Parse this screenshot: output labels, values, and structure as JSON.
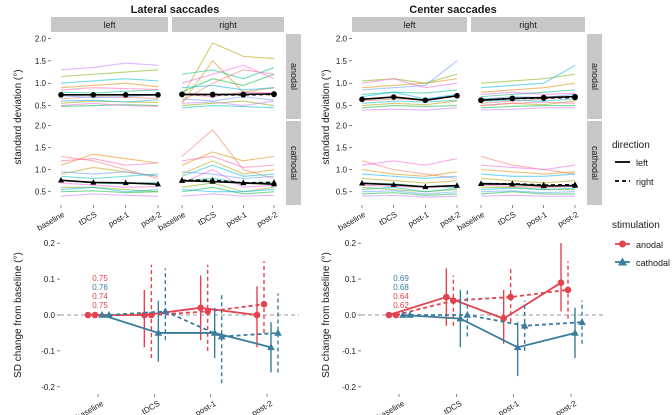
{
  "figure": {
    "panel_titles": [
      "Lateral saccades",
      "Center saccades"
    ],
    "facet_columns": [
      "left",
      "right"
    ],
    "facet_rows": [
      "anodal",
      "cathodal"
    ],
    "top_ylabel": "standard deviation (°)",
    "bottom_ylabel": "SD change from baseline (°)",
    "legend_direction": {
      "title": "direction",
      "items": [
        {
          "label": "left",
          "linestyle": "solid"
        },
        {
          "label": "right",
          "linestyle": "dashed"
        }
      ]
    },
    "legend_stimulation": {
      "title": "stimulation",
      "items": [
        {
          "label": "anodal",
          "color": "#e3434f",
          "marker": "circle"
        },
        {
          "label": "cathodal",
          "color": "#3a7d9c",
          "marker": "triangle"
        }
      ]
    }
  },
  "colors": {
    "anodal": "#e3434f",
    "cathodal": "#3a7d9c",
    "strip": "#c8c8c8",
    "text": "#1a1a1a"
  },
  "chart_data": [
    {
      "type": "line",
      "panel": "Lateral saccades",
      "x": [
        "baseline",
        "tDCS",
        "post-1",
        "post-2"
      ],
      "ylim": [
        0.2,
        2.1
      ],
      "yticks": [
        0.5,
        1.0,
        1.5,
        2.0
      ],
      "ytick_labels": [
        "0.5",
        "1.0",
        "1.5",
        "2.0"
      ],
      "note": "faint per-subject lines shown behind group means",
      "facets": [
        {
          "row": "anodal",
          "col": "left",
          "series": [
            {
              "direction": "left",
              "values": [
                0.74,
                0.74,
                0.74,
                0.74
              ]
            }
          ]
        },
        {
          "row": "anodal",
          "col": "right",
          "series": [
            {
              "direction": "left",
              "values": [
                0.75,
                0.75,
                0.75,
                0.76
              ]
            },
            {
              "direction": "right",
              "values": [
                0.75,
                0.74,
                0.74,
                0.75
              ]
            }
          ]
        },
        {
          "row": "cathodal",
          "col": "left",
          "series": [
            {
              "direction": "left",
              "values": [
                0.76,
                0.71,
                0.7,
                0.67
              ]
            }
          ]
        },
        {
          "row": "cathodal",
          "col": "right",
          "series": [
            {
              "direction": "left",
              "values": [
                0.75,
                0.73,
                0.7,
                0.67
              ]
            },
            {
              "direction": "right",
              "values": [
                0.76,
                0.76,
                0.7,
                0.71
              ]
            }
          ]
        }
      ],
      "subject_lines": {
        "anodal-left": [
          [
            0.65,
            0.7,
            0.68,
            0.66
          ],
          [
            0.9,
            0.95,
            1.0,
            0.92
          ],
          [
            0.55,
            0.6,
            0.58,
            0.57
          ],
          [
            1.15,
            1.2,
            1.25,
            1.3
          ],
          [
            0.48,
            0.5,
            0.52,
            0.5
          ],
          [
            0.8,
            0.78,
            0.82,
            0.85
          ],
          [
            1.0,
            1.05,
            1.1,
            1.05
          ],
          [
            0.6,
            0.62,
            0.58,
            0.63
          ],
          [
            0.72,
            0.68,
            0.7,
            0.74
          ],
          [
            1.3,
            1.35,
            1.45,
            1.4
          ],
          [
            0.5,
            0.55,
            0.5,
            0.48
          ],
          [
            0.85,
            0.9,
            0.88,
            0.86
          ]
        ],
        "anodal-right": [
          [
            0.6,
            1.0,
            1.3,
            1.2
          ],
          [
            0.55,
            1.5,
            0.8,
            0.9
          ],
          [
            0.7,
            1.9,
            1.6,
            1.55
          ],
          [
            0.5,
            0.55,
            0.6,
            0.5
          ],
          [
            0.8,
            1.1,
            0.95,
            1.2
          ],
          [
            1.2,
            1.3,
            1.1,
            1.35
          ],
          [
            0.45,
            0.5,
            0.48,
            0.45
          ],
          [
            0.9,
            0.95,
            0.85,
            0.9
          ],
          [
            0.65,
            0.6,
            0.7,
            0.62
          ],
          [
            0.55,
            0.58,
            0.5,
            0.6
          ],
          [
            1.0,
            1.2,
            1.4,
            1.1
          ],
          [
            0.75,
            0.7,
            0.8,
            0.78
          ]
        ],
        "cathodal-left": [
          [
            1.3,
            1.2,
            1.0,
            0.8
          ],
          [
            1.1,
            1.35,
            1.25,
            1.15
          ],
          [
            0.9,
            1.05,
            0.95,
            0.85
          ],
          [
            0.6,
            0.6,
            0.55,
            0.5
          ],
          [
            0.5,
            0.52,
            0.48,
            0.5
          ],
          [
            0.75,
            0.7,
            0.68,
            0.72
          ],
          [
            0.85,
            0.8,
            0.85,
            0.9
          ],
          [
            0.55,
            0.6,
            0.5,
            0.55
          ],
          [
            0.95,
            0.9,
            0.95,
            0.85
          ],
          [
            0.4,
            0.45,
            0.42,
            0.4
          ],
          [
            0.7,
            0.65,
            0.6,
            0.62
          ],
          [
            1.2,
            1.25,
            1.1,
            1.15
          ]
        ],
        "cathodal-right": [
          [
            1.3,
            1.9,
            1.0,
            0.8
          ],
          [
            1.1,
            1.4,
            1.2,
            1.3
          ],
          [
            0.9,
            1.2,
            0.9,
            1.0
          ],
          [
            0.6,
            0.7,
            0.5,
            0.6
          ],
          [
            0.5,
            0.6,
            0.45,
            0.5
          ],
          [
            0.75,
            0.8,
            0.7,
            0.72
          ],
          [
            0.85,
            1.1,
            0.85,
            0.9
          ],
          [
            0.55,
            0.5,
            0.5,
            0.55
          ],
          [
            0.95,
            0.9,
            0.8,
            0.85
          ],
          [
            0.4,
            0.45,
            0.4,
            0.42
          ],
          [
            0.7,
            1.0,
            0.6,
            0.65
          ],
          [
            1.2,
            1.3,
            1.05,
            1.1
          ]
        ]
      }
    },
    {
      "type": "line",
      "panel": "Center saccades",
      "x": [
        "baseline",
        "tDCS",
        "post-1",
        "post-2"
      ],
      "ylim": [
        0.2,
        2.1
      ],
      "yticks": [
        0.5,
        1.0,
        1.5,
        2.0
      ],
      "ytick_labels": [
        "0.5",
        "1.0",
        "1.5",
        "2.0"
      ],
      "facets": [
        {
          "row": "anodal",
          "col": "left",
          "series": [
            {
              "direction": "left",
              "values": [
                0.64,
                0.69,
                0.62,
                0.72
              ]
            }
          ]
        },
        {
          "row": "anodal",
          "col": "right",
          "series": [
            {
              "direction": "left",
              "values": [
                0.62,
                0.66,
                0.68,
                0.7
              ]
            },
            {
              "direction": "right",
              "values": [
                0.62,
                0.66,
                0.67,
                0.68
              ]
            }
          ]
        },
        {
          "row": "cathodal",
          "col": "left",
          "series": [
            {
              "direction": "left",
              "values": [
                0.69,
                0.66,
                0.61,
                0.64
              ]
            }
          ]
        },
        {
          "row": "cathodal",
          "col": "right",
          "series": [
            {
              "direction": "left",
              "values": [
                0.68,
                0.67,
                0.63,
                0.64
              ]
            },
            {
              "direction": "right",
              "values": [
                0.68,
                0.68,
                0.65,
                0.66
              ]
            }
          ]
        }
      ],
      "subject_lines": {
        "anodal-left": [
          [
            0.6,
            0.65,
            0.62,
            0.7
          ],
          [
            0.9,
            0.95,
            1.0,
            1.1
          ],
          [
            0.5,
            0.55,
            0.52,
            0.6
          ],
          [
            1.05,
            1.1,
            1.0,
            1.2
          ],
          [
            0.45,
            0.5,
            0.48,
            0.5
          ],
          [
            0.75,
            0.8,
            0.78,
            0.85
          ],
          [
            0.55,
            0.6,
            0.58,
            0.62
          ],
          [
            0.7,
            0.8,
            0.65,
            0.75
          ],
          [
            0.85,
            0.9,
            0.95,
            1.5
          ],
          [
            0.4,
            0.42,
            0.4,
            0.45
          ],
          [
            1.0,
            1.1,
            0.9,
            1.0
          ],
          [
            0.65,
            0.7,
            0.6,
            0.72
          ]
        ],
        "anodal-right": [
          [
            0.55,
            0.6,
            0.65,
            0.7
          ],
          [
            0.8,
            0.85,
            0.9,
            1.0
          ],
          [
            0.5,
            0.55,
            0.52,
            0.6
          ],
          [
            1.0,
            1.05,
            1.1,
            1.2
          ],
          [
            0.45,
            0.48,
            0.5,
            0.5
          ],
          [
            0.7,
            0.75,
            0.8,
            0.85
          ],
          [
            0.6,
            0.62,
            0.6,
            0.65
          ],
          [
            0.9,
            0.95,
            1.0,
            1.4
          ],
          [
            0.65,
            0.7,
            0.68,
            0.75
          ],
          [
            0.4,
            0.42,
            0.45,
            0.45
          ],
          [
            0.75,
            0.8,
            0.75,
            0.78
          ],
          [
            0.5,
            0.55,
            0.58,
            0.55
          ]
        ],
        "cathodal-left": [
          [
            1.2,
            1.0,
            0.9,
            0.8
          ],
          [
            1.0,
            0.9,
            0.85,
            0.95
          ],
          [
            0.8,
            0.75,
            0.7,
            0.75
          ],
          [
            0.6,
            0.55,
            0.5,
            0.55
          ],
          [
            0.45,
            0.48,
            0.42,
            0.45
          ],
          [
            0.7,
            0.68,
            0.62,
            0.6
          ],
          [
            0.55,
            0.6,
            0.5,
            0.58
          ],
          [
            0.9,
            0.85,
            0.8,
            0.85
          ],
          [
            0.5,
            0.52,
            0.45,
            0.5
          ],
          [
            0.4,
            0.42,
            0.38,
            0.4
          ],
          [
            1.1,
            1.2,
            1.1,
            1.25
          ],
          [
            0.65,
            0.62,
            0.6,
            0.62
          ]
        ],
        "cathodal-right": [
          [
            1.3,
            1.1,
            1.0,
            0.9
          ],
          [
            1.0,
            0.95,
            0.9,
            0.95
          ],
          [
            0.8,
            0.75,
            0.7,
            0.75
          ],
          [
            0.6,
            0.6,
            0.55,
            0.55
          ],
          [
            0.45,
            0.5,
            0.45,
            0.45
          ],
          [
            0.7,
            0.68,
            0.65,
            0.62
          ],
          [
            0.55,
            0.58,
            0.55,
            0.58
          ],
          [
            0.9,
            0.85,
            0.85,
            0.9
          ],
          [
            0.5,
            0.52,
            0.48,
            0.5
          ],
          [
            0.4,
            0.42,
            0.4,
            0.4
          ],
          [
            1.1,
            1.05,
            1.0,
            1.1
          ],
          [
            0.65,
            0.62,
            0.6,
            0.62
          ]
        ]
      }
    },
    {
      "type": "line",
      "panel": "Lateral saccades",
      "x": [
        "baseline",
        "tDCS",
        "post-1",
        "post-2"
      ],
      "ylim": [
        -0.22,
        0.22
      ],
      "yticks": [
        -0.2,
        -0.1,
        0.0,
        0.1,
        0.2
      ],
      "ytick_labels": [
        "-0.2",
        "-0.1",
        "0.0",
        "0.1",
        "0.2"
      ],
      "reference_line": 0,
      "baseline_labels": [
        {
          "text": "0.75",
          "color": "anodal"
        },
        {
          "text": "0.76",
          "color": "cathodal"
        },
        {
          "text": "0.74",
          "color": "anodal"
        },
        {
          "text": "0.75",
          "color": "anodal"
        }
      ],
      "series": [
        {
          "stimulation": "anodal",
          "direction": "left",
          "values": [
            0,
            0.0,
            0.02,
            0.0
          ],
          "ci_low": [
            0,
            -0.09,
            -0.07,
            -0.09
          ],
          "ci_high": [
            0,
            0.07,
            0.11,
            0.08
          ]
        },
        {
          "stimulation": "anodal",
          "direction": "right",
          "values": [
            0,
            0.0,
            0.01,
            0.03
          ],
          "ci_low": [
            0,
            -0.12,
            -0.1,
            -0.05
          ],
          "ci_high": [
            0,
            0.14,
            0.14,
            0.15
          ]
        },
        {
          "stimulation": "cathodal",
          "direction": "left",
          "values": [
            0,
            -0.05,
            -0.05,
            -0.09
          ],
          "ci_low": [
            0,
            -0.13,
            -0.12,
            -0.16
          ],
          "ci_high": [
            0,
            0.04,
            0.02,
            -0.02
          ]
        },
        {
          "stimulation": "cathodal",
          "direction": "right",
          "values": [
            0,
            0.01,
            -0.06,
            -0.05
          ],
          "ci_low": [
            0,
            -0.07,
            -0.19,
            -0.16
          ],
          "ci_high": [
            0,
            0.13,
            0.06,
            0.06
          ]
        }
      ]
    },
    {
      "type": "line",
      "panel": "Center saccades",
      "x": [
        "baseline",
        "tDCS",
        "post-1",
        "post-2"
      ],
      "ylim": [
        -0.22,
        0.22
      ],
      "yticks": [
        -0.2,
        -0.1,
        0.0,
        0.1,
        0.2
      ],
      "ytick_labels": [
        "-0.2",
        "-0.1",
        "0.0",
        "0.1",
        "0.2"
      ],
      "reference_line": 0,
      "baseline_labels": [
        {
          "text": "0.69",
          "color": "cathodal"
        },
        {
          "text": "0.68",
          "color": "cathodal"
        },
        {
          "text": "0.64",
          "color": "anodal"
        },
        {
          "text": "0.62",
          "color": "anodal"
        }
      ],
      "series": [
        {
          "stimulation": "anodal",
          "direction": "left",
          "values": [
            0,
            0.05,
            -0.01,
            0.09
          ],
          "ci_low": [
            0,
            -0.03,
            -0.08,
            0.01
          ],
          "ci_high": [
            0,
            0.13,
            0.07,
            0.2
          ]
        },
        {
          "stimulation": "anodal",
          "direction": "right",
          "values": [
            0,
            0.04,
            0.05,
            0.07
          ],
          "ci_low": [
            0,
            -0.03,
            -0.02,
            -0.01
          ],
          "ci_high": [
            0,
            0.11,
            0.13,
            0.15
          ]
        },
        {
          "stimulation": "cathodal",
          "direction": "left",
          "values": [
            0,
            -0.01,
            -0.09,
            -0.05
          ],
          "ci_low": [
            0,
            -0.09,
            -0.17,
            -0.12
          ],
          "ci_high": [
            0,
            0.07,
            -0.02,
            0.02
          ]
        },
        {
          "stimulation": "cathodal",
          "direction": "right",
          "values": [
            0,
            0.0,
            -0.03,
            -0.02
          ],
          "ci_low": [
            0,
            -0.06,
            -0.1,
            -0.08
          ],
          "ci_high": [
            0,
            0.07,
            0.04,
            0.04
          ]
        }
      ]
    }
  ]
}
